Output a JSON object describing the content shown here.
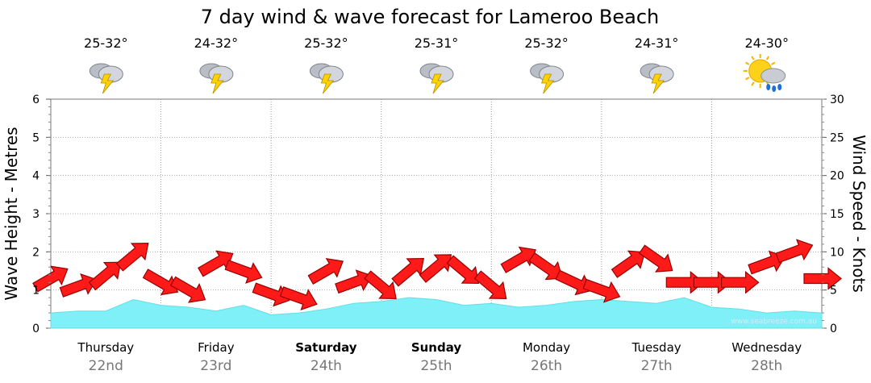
{
  "chart_data": {
    "type": "area",
    "title": "7 day wind & wave forecast for Lameroo Beach",
    "ylabel_left": "Wave Height - Metres",
    "ylabel_right": "Wind Speed - Knots",
    "ylim_left": [
      0,
      6
    ],
    "ylim_right": [
      0,
      30
    ],
    "left_ticks": [
      "0",
      "1",
      "2",
      "3",
      "4",
      "5",
      "6"
    ],
    "right_ticks": [
      "0",
      "5",
      "10",
      "15",
      "20",
      "25",
      "30"
    ],
    "credit": "www.seabreeze.com.au",
    "days": [
      {
        "name": "Thursday",
        "date": "22nd",
        "temp": "25-32°",
        "icon": "thunderstorm-icon",
        "bold": false
      },
      {
        "name": "Friday",
        "date": "23rd",
        "temp": "24-32°",
        "icon": "thunderstorm-icon",
        "bold": false
      },
      {
        "name": "Saturday",
        "date": "24th",
        "temp": "25-32°",
        "icon": "thunderstorm-icon",
        "bold": true
      },
      {
        "name": "Sunday",
        "date": "25th",
        "temp": "25-31°",
        "icon": "thunderstorm-icon",
        "bold": true
      },
      {
        "name": "Monday",
        "date": "26th",
        "temp": "25-32°",
        "icon": "thunderstorm-icon",
        "bold": false
      },
      {
        "name": "Tuesday",
        "date": "27th",
        "temp": "24-31°",
        "icon": "thunderstorm-icon",
        "bold": false
      },
      {
        "name": "Wednesday",
        "date": "28th",
        "temp": "24-30°",
        "icon": "sun-rain-icon",
        "bold": false
      }
    ],
    "wave_series": {
      "name": "Wave height (m)",
      "t": [
        0,
        0.25,
        0.5,
        0.75,
        1,
        1.25,
        1.5,
        1.75,
        2,
        2.25,
        2.5,
        2.75,
        3,
        3.25,
        3.5,
        3.75,
        4,
        4.25,
        4.5,
        4.75,
        5,
        5.25,
        5.5,
        5.75,
        6,
        6.25,
        6.5,
        6.75,
        7
      ],
      "values": [
        0.4,
        0.45,
        0.45,
        0.75,
        0.6,
        0.55,
        0.45,
        0.6,
        0.35,
        0.4,
        0.5,
        0.65,
        0.7,
        0.8,
        0.75,
        0.6,
        0.65,
        0.55,
        0.6,
        0.7,
        0.75,
        0.7,
        0.65,
        0.8,
        0.55,
        0.5,
        0.4,
        0.45,
        0.4
      ]
    },
    "wind_series": {
      "name": "Wind speed (kn)",
      "t": [
        0,
        0.25,
        0.5,
        0.75,
        1,
        1.25,
        1.5,
        1.75,
        2,
        2.25,
        2.5,
        2.75,
        3,
        3.25,
        3.5,
        3.75,
        4,
        4.25,
        4.5,
        4.75,
        5,
        5.25,
        5.5,
        5.75,
        6,
        6.25,
        6.5,
        6.75,
        7
      ],
      "values": [
        6.5,
        5.5,
        7,
        9.5,
        6,
        5,
        8.5,
        7.5,
        4.5,
        4,
        7.5,
        6,
        5.5,
        7.5,
        8,
        7.5,
        5.5,
        9,
        8,
        6,
        5,
        8.5,
        9,
        6,
        6,
        6,
        8.5,
        10,
        6.5
      ],
      "dir_deg": [
        -30,
        -20,
        -40,
        -40,
        30,
        30,
        -30,
        20,
        20,
        20,
        -30,
        -20,
        40,
        -40,
        -40,
        40,
        40,
        -30,
        35,
        25,
        20,
        -35,
        35,
        0,
        0,
        0,
        -20,
        -20,
        0
      ]
    }
  }
}
